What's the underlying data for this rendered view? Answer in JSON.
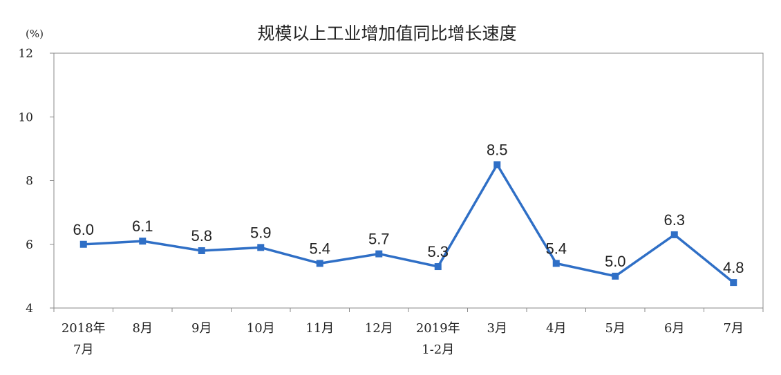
{
  "chart_data": {
    "type": "line",
    "title": "规模以上工业增加值同比增长速度",
    "ylabel": "(%)",
    "xlabel": "",
    "ylim": [
      4,
      12
    ],
    "yticks": [
      4,
      6,
      8,
      10,
      12
    ],
    "grid": false,
    "legend": "none",
    "categories": [
      [
        "2018年",
        "7月"
      ],
      [
        "8月"
      ],
      [
        "9月"
      ],
      [
        "10月"
      ],
      [
        "11月"
      ],
      [
        "12月"
      ],
      [
        "2019年",
        "1-2月"
      ],
      [
        "3月"
      ],
      [
        "4月"
      ],
      [
        "5月"
      ],
      [
        "6月"
      ],
      [
        "7月"
      ]
    ],
    "series": [
      {
        "values": [
          6.0,
          6.1,
          5.8,
          5.9,
          5.4,
          5.7,
          5.3,
          8.5,
          5.4,
          5.0,
          6.3,
          4.8
        ],
        "data_labels": [
          "6.0",
          "6.1",
          "5.8",
          "5.9",
          "5.4",
          "5.7",
          "5.3",
          "8.5",
          "5.4",
          "5.0",
          "6.3",
          "4.8"
        ],
        "color": "#2f6fc6"
      }
    ]
  }
}
